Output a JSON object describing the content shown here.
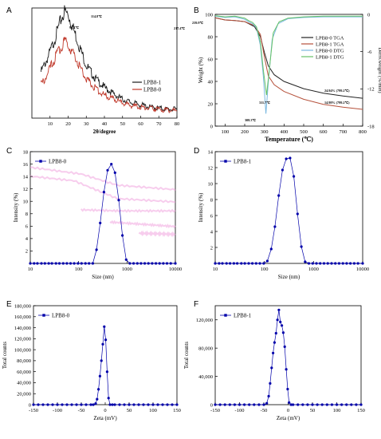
{
  "chart_data": [
    {
      "panel": "A",
      "type": "line",
      "xlabel": "2θ/degree",
      "ylabel": "",
      "xlim": [
        0,
        80
      ],
      "ylim": [
        0,
        1
      ],
      "xticks": [
        10,
        20,
        30,
        40,
        50,
        60,
        70,
        80
      ],
      "yticks": [],
      "series": [
        {
          "name": "LPB8-1",
          "color": "#1a1a1a",
          "x": [
            5,
            8,
            10,
            12,
            14,
            16,
            18,
            20,
            22,
            24,
            26,
            28,
            30,
            35,
            40,
            45,
            50,
            55,
            60,
            65,
            70,
            75,
            80
          ],
          "y": [
            0.42,
            0.52,
            0.6,
            0.69,
            0.79,
            0.89,
            0.97,
            0.94,
            0.85,
            0.76,
            0.66,
            0.57,
            0.48,
            0.36,
            0.28,
            0.22,
            0.17,
            0.14,
            0.12,
            0.1,
            0.09,
            0.08,
            0.08
          ]
        },
        {
          "name": "LPB8-0",
          "color": "#c0392b",
          "x": [
            5,
            8,
            10,
            12,
            14,
            16,
            18,
            20,
            22,
            24,
            26,
            28,
            30,
            35,
            40,
            45,
            50,
            55,
            60,
            65,
            70,
            75,
            80
          ],
          "y": [
            0.3,
            0.38,
            0.45,
            0.52,
            0.59,
            0.65,
            0.69,
            0.67,
            0.61,
            0.55,
            0.48,
            0.42,
            0.36,
            0.27,
            0.21,
            0.17,
            0.14,
            0.11,
            0.1,
            0.09,
            0.08,
            0.07,
            0.07
          ]
        }
      ]
    },
    {
      "panel": "B",
      "type": "line",
      "xlabel": "Temperature (℃)",
      "ylabel": "Weight (%)",
      "y2label": "Deriv.weight (%/min)",
      "xlim": [
        50,
        800
      ],
      "ylim": [
        0,
        100
      ],
      "y2lim": [
        -18,
        0
      ],
      "xticks": [
        100,
        200,
        300,
        400,
        500,
        600,
        700,
        800
      ],
      "yticks": [
        0,
        20,
        40,
        60,
        80,
        100
      ],
      "y2ticks": [
        0,
        -6,
        -12,
        -18
      ],
      "legend": "right",
      "annotations": [
        "114.8℃",
        "99.4℃",
        "217.4℃",
        "239.9℃",
        "308.3℃",
        "311.7℃",
        "24.94% (799.2℃)",
        "14.98% (799.2℃)"
      ],
      "series": [
        {
          "name": "LPB8-0 TGA",
          "color": "#222222",
          "axis": "left",
          "x": [
            50,
            100,
            150,
            200,
            250,
            280,
            300,
            320,
            350,
            400,
            500,
            600,
            700,
            800
          ],
          "y": [
            97,
            95,
            94.5,
            93.5,
            89,
            80,
            66,
            54,
            46,
            40,
            33.5,
            29.5,
            27,
            24.9
          ]
        },
        {
          "name": "LPB8-1 TGA",
          "color": "#b5503a",
          "axis": "left",
          "x": [
            50,
            100,
            150,
            200,
            250,
            280,
            300,
            320,
            350,
            400,
            500,
            600,
            700,
            800
          ],
          "y": [
            97,
            95,
            94.5,
            93.5,
            90,
            82,
            62,
            45,
            37,
            31,
            24,
            19.5,
            17,
            15
          ]
        },
        {
          "name": "LPB8-0 DTG",
          "color": "#7ab8e0",
          "axis": "right",
          "x": [
            50,
            100,
            150,
            200,
            220,
            240,
            260,
            280,
            295,
            308,
            320,
            340,
            370,
            420,
            500,
            600,
            700,
            800
          ],
          "y": [
            -0.3,
            -0.5,
            -0.4,
            -0.8,
            -1.2,
            -1.5,
            -2.2,
            -5,
            -10,
            -16,
            -11,
            -4,
            -1.5,
            -0.7,
            -0.5,
            -0.4,
            -0.4,
            -0.4
          ]
        },
        {
          "name": "LPB8-1 DTG",
          "color": "#66c266",
          "axis": "right",
          "x": [
            50,
            100,
            150,
            200,
            220,
            240,
            260,
            280,
            295,
            311,
            325,
            345,
            375,
            420,
            500,
            600,
            700,
            800
          ],
          "y": [
            -0.2,
            -0.4,
            -0.3,
            -0.6,
            -1,
            -1.3,
            -2,
            -4.5,
            -9,
            -13,
            -9,
            -3,
            -1.2,
            -0.6,
            -0.4,
            -0.3,
            -0.3,
            -0.3
          ]
        }
      ]
    },
    {
      "panel": "C",
      "type": "scatter",
      "xlabel": "Size (nm)",
      "ylabel": "Intensity (%)",
      "xscale": "log",
      "xlim": [
        10,
        10000
      ],
      "ylim": [
        0,
        18
      ],
      "xticks": [
        10,
        100,
        1000,
        10000
      ],
      "yticks": [
        2,
        4,
        6,
        8,
        10,
        12,
        14,
        16,
        18
      ],
      "legend": "top-left",
      "series": [
        {
          "name": "LPB8-0",
          "color": "#0000aa",
          "x": [
            10,
            12,
            14,
            17,
            20,
            24,
            28,
            34,
            40,
            48,
            57,
            68,
            81,
            97,
            115,
            138,
            164,
            196,
            234,
            279,
            333,
            397,
            474,
            566,
            675,
            805,
            961,
            1147,
            1369,
            1634,
            1950,
            2327,
            2777,
            3314,
            3955,
            4720,
            5633,
            6722,
            8023,
            10000
          ],
          "y": [
            0,
            0,
            0,
            0,
            0,
            0,
            0,
            0,
            0,
            0,
            0,
            0,
            0,
            0,
            0,
            0,
            0,
            0,
            2.2,
            6.5,
            11.5,
            15,
            16,
            14.6,
            10.2,
            4.5,
            0.6,
            0,
            0,
            0,
            0,
            0,
            0,
            0,
            0,
            0,
            0,
            0,
            0,
            0
          ]
        }
      ]
    },
    {
      "panel": "D",
      "type": "scatter",
      "xlabel": "Size (nm)",
      "ylabel": "Intensity (%)",
      "xscale": "log",
      "xlim": [
        10,
        10000
      ],
      "ylim": [
        0,
        14
      ],
      "xticks": [
        10,
        100,
        1000,
        10000
      ],
      "yticks": [
        2,
        4,
        6,
        8,
        10,
        12,
        14
      ],
      "legend": "top-left",
      "series": [
        {
          "name": "LPB8-1",
          "color": "#0000aa",
          "x": [
            10,
            12,
            14,
            17,
            20,
            24,
            28,
            34,
            40,
            48,
            57,
            68,
            81,
            97,
            115,
            138,
            164,
            196,
            234,
            279,
            333,
            397,
            474,
            566,
            675,
            805,
            961,
            1147,
            1369,
            1634,
            1950,
            2327,
            2777,
            3314,
            3955,
            4720,
            5633,
            6722,
            8023,
            10000
          ],
          "y": [
            0,
            0,
            0,
            0,
            0,
            0,
            0,
            0,
            0,
            0,
            0,
            0,
            0,
            0,
            0.3,
            1.8,
            4.6,
            8.5,
            11.7,
            13.1,
            13.2,
            10.9,
            6.2,
            2.1,
            0.2,
            0,
            0,
            0,
            0,
            0,
            0,
            0,
            0,
            0,
            0,
            0,
            0,
            0,
            0,
            0
          ]
        }
      ]
    },
    {
      "panel": "E",
      "type": "scatter",
      "xlabel": "Zeta (mV)",
      "ylabel": "Total counts",
      "xlim": [
        -150,
        150
      ],
      "ylim": [
        0,
        180000
      ],
      "xticks": [
        -150,
        -100,
        -50,
        0,
        50,
        100,
        150
      ],
      "yticks": [
        0,
        20000,
        40000,
        60000,
        80000,
        100000,
        120000,
        140000,
        160000,
        180000
      ],
      "ytick_labels": [
        "0",
        "20,000",
        "40,000",
        "60,000",
        "80,000",
        "100,000",
        "120,000",
        "140,000",
        "160,000",
        "180,000"
      ],
      "legend": "top-left",
      "series": [
        {
          "name": "LPB8-0",
          "color": "#0000aa",
          "x": [
            -150,
            -140,
            -130,
            -120,
            -110,
            -100,
            -90,
            -80,
            -70,
            -60,
            -50,
            -40,
            -30,
            -25,
            -20,
            -17,
            -14,
            -11,
            -8,
            -5,
            -2,
            1,
            4,
            7,
            10,
            15,
            20,
            30,
            40,
            50,
            60,
            70,
            80,
            90,
            100,
            110,
            120,
            130,
            140,
            150
          ],
          "y": [
            0,
            0,
            0,
            0,
            0,
            0,
            0,
            0,
            0,
            0,
            0,
            0,
            0,
            0,
            2000,
            10000,
            28000,
            52000,
            80000,
            110000,
            142000,
            118000,
            60000,
            12000,
            0,
            0,
            0,
            0,
            0,
            0,
            0,
            0,
            0,
            0,
            0,
            0,
            0,
            0,
            0,
            0
          ]
        }
      ]
    },
    {
      "panel": "F",
      "type": "scatter",
      "xlabel": "Zeta (mV)",
      "ylabel": "Total counts",
      "xlim": [
        -150,
        150
      ],
      "ylim": [
        0,
        140000
      ],
      "xticks": [
        -150,
        -100,
        -50,
        0,
        50,
        100,
        150
      ],
      "yticks": [
        0,
        40000,
        80000,
        120000
      ],
      "ytick_labels": [
        "0",
        "40,000",
        "80,000",
        "120,000"
      ],
      "legend": "top-left",
      "series": [
        {
          "name": "LPB8-1",
          "color": "#0000aa",
          "x": [
            -150,
            -140,
            -130,
            -120,
            -110,
            -100,
            -90,
            -80,
            -70,
            -60,
            -50,
            -44,
            -40,
            -37,
            -34,
            -31,
            -28,
            -25,
            -22,
            -19,
            -16,
            -13,
            -10,
            -7,
            -4,
            -1,
            2,
            6,
            10,
            20,
            30,
            40,
            50,
            60,
            70,
            80,
            90,
            100,
            110,
            120,
            130,
            140,
            150
          ],
          "y": [
            0,
            0,
            0,
            0,
            0,
            0,
            0,
            0,
            0,
            0,
            0,
            2000,
            12000,
            30000,
            52000,
            73000,
            88000,
            101000,
            120000,
            134000,
            117000,
            112000,
            102000,
            82000,
            50000,
            22000,
            3000,
            0,
            0,
            0,
            0,
            0,
            0,
            0,
            0,
            0,
            0,
            0,
            0,
            0,
            0,
            0,
            0
          ]
        }
      ]
    }
  ]
}
